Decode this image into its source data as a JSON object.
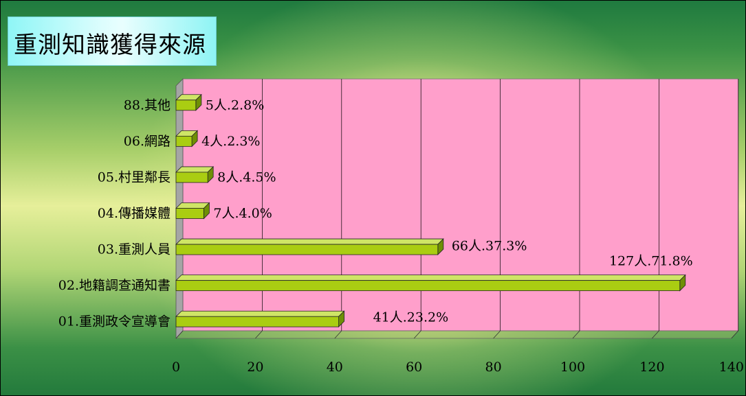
{
  "title": "重測知識獲得來源",
  "colors": {
    "plot_area": "#ff9fcb",
    "bar_face": "#aacd12",
    "bar_side": "#6f8f06",
    "bar_top": "#cfe566",
    "wall_side": "#a5a5a5",
    "gridline": "#000000"
  },
  "chart_data": {
    "type": "bar",
    "orientation": "horizontal",
    "title": "重測知識獲得來源",
    "categories": [
      "01.重測政令宣導會",
      "02.地籍調查通知書",
      "03.重測人員",
      "04.傳播媒體",
      "05.村里鄰長",
      "06.網路",
      "88.其他"
    ],
    "values": [
      41,
      127,
      66,
      7,
      8,
      4,
      5
    ],
    "data_labels": [
      "41人.23.2%",
      "127人.71.8%",
      "66人.37.3%",
      "7人.4.0%",
      "8人.4.5%",
      "4人.2.3%",
      "5人.2.8%"
    ],
    "xlim": [
      0,
      140
    ],
    "x_ticks": [
      "0",
      "20",
      "40",
      "60",
      "80",
      "100",
      "120",
      "140"
    ],
    "grid": true,
    "legend": "none",
    "xlabel": "",
    "ylabel": ""
  }
}
